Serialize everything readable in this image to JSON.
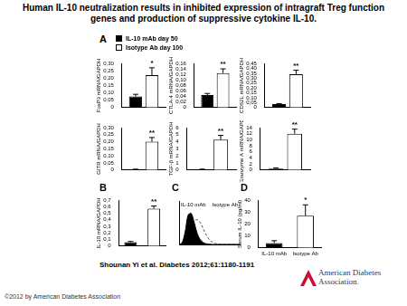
{
  "title": "Human IL-10 neutralization results in inhibited expression of intragraft Treg function genes and production of suppressive cytokine IL-10.",
  "citation": "Shounan Yi et al. Diabetes 2012;61:1180-1191",
  "copyright": "©2012 by American Diabetes Association",
  "logo": "American Diabetes Association.",
  "chart_data": [
    {
      "type": "bar",
      "panel": "A",
      "legend": "top",
      "grid": false,
      "y_label": "FoxP3 mRNA/GAPDH",
      "categories": [
        null
      ],
      "series": [
        {
          "name": "IL-10 mAb day 50",
          "color": "#000000",
          "values": [
            0.075
          ],
          "errors": [
            0.015
          ]
        },
        {
          "name": "Isotype Ab day 100",
          "color": "#ffffff",
          "values": [
            0.22
          ],
          "errors": [
            0.05
          ],
          "significance": [
            "*"
          ]
        }
      ],
      "ylim": [
        0,
        0.3
      ],
      "yticks": [
        0,
        {
          "value": 0.05,
          "label": "0,05"
        },
        {
          "value": 0.1,
          "label": "0,10"
        },
        {
          "value": 0.15,
          "label": "0,15"
        },
        {
          "value": 0.2,
          "label": "0,20"
        },
        {
          "value": 0.25,
          "label": "0,25"
        },
        {
          "value": 0.3,
          "label": "0,30"
        }
      ]
    },
    {
      "type": "bar",
      "grid": false,
      "y_label": "CTLA-4 mRNA/GAPDH",
      "categories": [
        null
      ],
      "series": [
        {
          "name": "IL-10 mAb day 50",
          "color": "#000000",
          "values": [
            0.045
          ],
          "errors": [
            0.006
          ]
        },
        {
          "name": "Isotype Ab day 100",
          "color": "#ffffff",
          "values": [
            0.125
          ],
          "errors": [
            0.015
          ],
          "significance": [
            "**"
          ]
        }
      ],
      "ylim": [
        0,
        0.16
      ],
      "yticks": [
        0,
        {
          "value": 0.02,
          "label": "0,02"
        },
        {
          "value": 0.04,
          "label": "0,04"
        },
        {
          "value": 0.06,
          "label": "0,06"
        },
        {
          "value": 0.08,
          "label": "0,08"
        },
        {
          "value": 0.1,
          "label": "0,10"
        },
        {
          "value": 0.12,
          "label": "0,12"
        },
        {
          "value": 0.14,
          "label": "0,14"
        },
        {
          "value": 0.16,
          "label": "0,16"
        }
      ]
    },
    {
      "type": "bar",
      "grid": false,
      "y_label": "CD62L mRNA/GAPDH",
      "categories": [
        null
      ],
      "series": [
        {
          "name": "IL-10 mAb day 50",
          "color": "#000000",
          "values": [
            0.035
          ],
          "errors": [
            0.005
          ]
        },
        {
          "name": "Isotype Ab day 100",
          "color": "#ffffff",
          "values": [
            0.34
          ],
          "errors": [
            0.04
          ],
          "significance": [
            "**"
          ]
        }
      ],
      "ylim": [
        0,
        0.45
      ],
      "yticks": [
        0,
        {
          "value": 0.05,
          "label": "0,05"
        },
        {
          "value": 0.1,
          "label": "0,10"
        },
        {
          "value": 0.15,
          "label": "0,15"
        },
        {
          "value": 0.2,
          "label": "0,20"
        },
        {
          "value": 0.25,
          "label": "0,25"
        },
        {
          "value": 0.3,
          "label": "0,30"
        },
        {
          "value": 0.35,
          "label": "0,35"
        },
        {
          "value": 0.4,
          "label": "0,40"
        },
        {
          "value": 0.45,
          "label": "0,45"
        }
      ]
    },
    {
      "type": "bar",
      "grid": false,
      "y_label": "GITR mRNA/GAPDH",
      "categories": [
        null
      ],
      "series": [
        {
          "name": "IL-10 mAb day 50",
          "color": "#000000",
          "values": [
            0.005
          ],
          "errors": [
            0.001
          ]
        },
        {
          "name": "Isotype Ab day 100",
          "color": "#ffffff",
          "values": [
            0.2
          ],
          "errors": [
            0.03
          ],
          "significance": [
            "**"
          ]
        }
      ],
      "ylim": [
        0,
        0.3
      ],
      "yticks": [
        0,
        {
          "value": 0.05,
          "label": "0,05"
        },
        {
          "value": 0.1,
          "label": "0,10"
        },
        {
          "value": 0.15,
          "label": "0,15"
        },
        {
          "value": 0.2,
          "label": "0,20"
        },
        {
          "value": 0.25,
          "label": "0,25"
        },
        {
          "value": 0.3,
          "label": "0,30"
        }
      ]
    },
    {
      "type": "bar",
      "grid": false,
      "y_label": "TGF-β mRNA/GAPDH",
      "categories": [
        null
      ],
      "series": [
        {
          "name": "IL-10 mAb day 50",
          "color": "#000000",
          "values": [
            0.1
          ],
          "errors": [
            0.03
          ]
        },
        {
          "name": "Isotype Ab day 100",
          "color": "#ffffff",
          "values": [
            4.3
          ],
          "errors": [
            0.6
          ],
          "significance": [
            "**"
          ]
        }
      ],
      "ylim": [
        0,
        6
      ],
      "yticks": [
        0,
        1,
        2,
        3,
        4,
        5,
        6
      ]
    },
    {
      "type": "bar",
      "grid": false,
      "y_label": "Granzyme A mRNA/GAPDH",
      "categories": [
        null
      ],
      "series": [
        {
          "name": "IL-10 mAb day 50",
          "color": "#000000",
          "values": [
            0.5
          ],
          "errors": [
            0.2
          ]
        },
        {
          "name": "Isotype Ab day 100",
          "color": "#ffffff",
          "values": [
            12
          ],
          "errors": [
            1.5
          ],
          "significance": [
            "**"
          ]
        }
      ],
      "ylim": [
        0,
        14
      ],
      "yticks": [
        0,
        2,
        4,
        6,
        8,
        10,
        12,
        14
      ]
    },
    {
      "type": "bar",
      "panel": "B",
      "grid": false,
      "y_label": "IL-10 mRNA/GAPDH",
      "categories": [
        null,
        null
      ],
      "values": [
        0.06,
        0.57
      ],
      "errors": [
        0.01,
        0.04
      ],
      "significance": [
        null,
        "**"
      ],
      "colors": [
        "#000000",
        "#ffffff"
      ],
      "ylim": [
        0,
        0.7
      ],
      "yticks": [
        0,
        {
          "value": 0.1,
          "label": "0,1"
        },
        {
          "value": 0.2,
          "label": "0,2"
        },
        {
          "value": 0.3,
          "label": "0,3"
        },
        {
          "value": 0.4,
          "label": "0,4"
        },
        {
          "value": 0.5,
          "label": "0,5"
        },
        {
          "value": 0.6,
          "label": "0,6"
        },
        {
          "value": 0.7,
          "label": "0,7"
        }
      ]
    },
    {
      "type": "line",
      "panel": "C",
      "grid": false,
      "tick_labels": false,
      "x": [
        0,
        5,
        10,
        15,
        20,
        25,
        30,
        35,
        40,
        45,
        50,
        55,
        60,
        65,
        70,
        75,
        80,
        85,
        90,
        95,
        100
      ],
      "series": [
        {
          "name": "IL-10 mAb",
          "type": "area",
          "color": "#000000",
          "line_style": "solid",
          "values": [
            0,
            5,
            40,
            95,
            100,
            70,
            35,
            15,
            6,
            2,
            1,
            0,
            0,
            0,
            0,
            0,
            0,
            0,
            0,
            0,
            0
          ]
        },
        {
          "name": "Isotype Ab",
          "type": "line",
          "color": "#555555",
          "line_style": "dashed",
          "values": [
            0,
            1,
            5,
            20,
            45,
            75,
            80,
            70,
            50,
            30,
            15,
            7,
            3,
            1,
            0,
            0,
            0,
            0,
            0,
            0,
            0
          ]
        }
      ],
      "xlim": [
        0,
        100
      ],
      "ylim": [
        0,
        140
      ]
    },
    {
      "type": "bar",
      "panel": "D",
      "grid": false,
      "y_label": "Serum IL-10 (pg/ml)",
      "categories": [
        "IL-10 mAb",
        "Isotype Ab"
      ],
      "values": [
        4,
        27
      ],
      "errors": [
        2,
        9
      ],
      "significance": [
        null,
        "*"
      ],
      "colors": [
        "#000000",
        "#ffffff"
      ],
      "ylim": [
        0,
        40
      ],
      "yticks": [
        0,
        10,
        20,
        30,
        40
      ]
    }
  ]
}
